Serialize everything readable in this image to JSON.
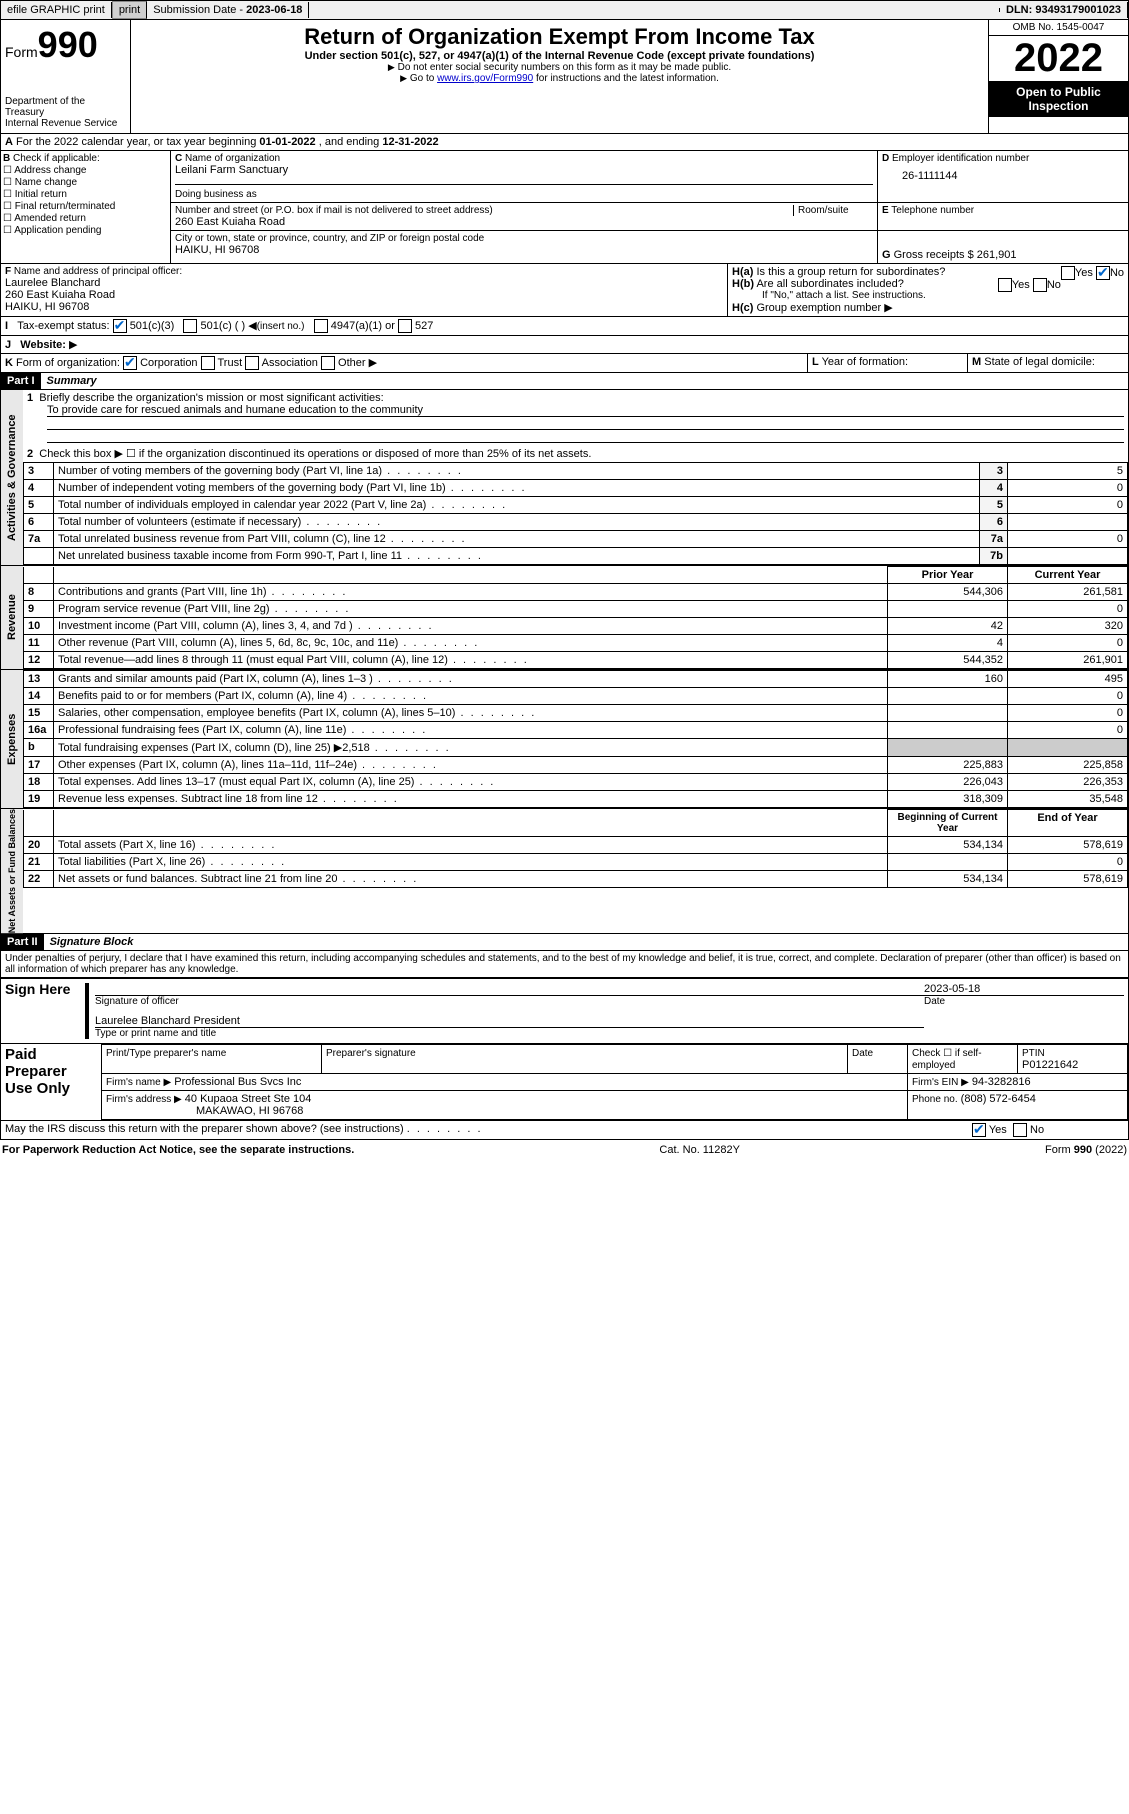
{
  "topbar": {
    "efile": "efile GRAPHIC print",
    "sub_label": "Submission Date - ",
    "sub_date": "2023-06-18",
    "dln_label": "DLN: ",
    "dln": "93493179001023"
  },
  "header": {
    "form_word": "Form",
    "form_num": "990",
    "dept": "Department of the Treasury",
    "irs": "Internal Revenue Service",
    "title": "Return of Organization Exempt From Income Tax",
    "subtitle": "Under section 501(c), 527, or 4947(a)(1) of the Internal Revenue Code (except private foundations)",
    "note1": "Do not enter social security numbers on this form as it may be made public.",
    "note2_pre": "Go to ",
    "note2_link": "www.irs.gov/Form990",
    "note2_post": " for instructions and the latest information.",
    "omb": "OMB No. 1545-0047",
    "year": "2022",
    "inspect1": "Open to Public",
    "inspect2": "Inspection"
  },
  "A": {
    "text": "For the 2022 calendar year, or tax year beginning ",
    "begin": "01-01-2022",
    "mid": " , and ending ",
    "end": "12-31-2022"
  },
  "B": {
    "label": "Check if applicable:",
    "opts": [
      "Address change",
      "Name change",
      "Initial return",
      "Final return/terminated",
      "Amended return",
      "Application pending"
    ]
  },
  "C": {
    "name_lbl": "Name of organization",
    "name": "Leilani Farm Sanctuary",
    "dba_lbl": "Doing business as",
    "street_lbl": "Number and street (or P.O. box if mail is not delivered to street address)",
    "room_lbl": "Room/suite",
    "street": "260 East Kuiaha Road",
    "city_lbl": "City or town, state or province, country, and ZIP or foreign postal code",
    "city": "HAIKU, HI  96708"
  },
  "D": {
    "lbl": "Employer identification number",
    "val": "26-1111144"
  },
  "E": {
    "lbl": "Telephone number"
  },
  "G": {
    "lbl": "Gross receipts $ ",
    "val": "261,901"
  },
  "F": {
    "lbl": "Name and address of principal officer:",
    "name": "Laurelee Blanchard",
    "addr1": "260 East Kuiaha Road",
    "addr2": "HAIKU, HI  96708"
  },
  "H": {
    "a": "Is this a group return for subordinates?",
    "b": "Are all subordinates included?",
    "note": "If \"No,\" attach a list. See instructions.",
    "c": "Group exemption number",
    "yes": "Yes",
    "no": "No"
  },
  "I": {
    "lbl": "Tax-exempt status:",
    "o1": "501(c)(3)",
    "o2": "501(c) (  )",
    "o2b": "(insert no.)",
    "o3": "4947(a)(1) or",
    "o4": "527"
  },
  "J": {
    "lbl": "Website:"
  },
  "K": {
    "lbl": "Form of organization:",
    "o1": "Corporation",
    "o2": "Trust",
    "o3": "Association",
    "o4": "Other"
  },
  "L": {
    "lbl": "Year of formation:"
  },
  "M": {
    "lbl": "State of legal domicile:"
  },
  "part1": {
    "hdr": "Part I",
    "title": "Summary"
  },
  "summary": {
    "l1": "Briefly describe the organization's mission or most significant activities:",
    "l1v": "To provide care for rescued animals and humane education to the community",
    "l2": "Check this box ▶ ☐  if the organization discontinued its operations or disposed of more than 25% of its net assets.",
    "rows_top": [
      {
        "n": "3",
        "t": "Number of voting members of the governing body (Part VI, line 1a)",
        "box": "3",
        "v": "5"
      },
      {
        "n": "4",
        "t": "Number of independent voting members of the governing body (Part VI, line 1b)",
        "box": "4",
        "v": "0"
      },
      {
        "n": "5",
        "t": "Total number of individuals employed in calendar year 2022 (Part V, line 2a)",
        "box": "5",
        "v": "0"
      },
      {
        "n": "6",
        "t": "Total number of volunteers (estimate if necessary)",
        "box": "6",
        "v": ""
      },
      {
        "n": "7a",
        "t": "Total unrelated business revenue from Part VIII, column (C), line 12",
        "box": "7a",
        "v": "0"
      },
      {
        "n": "",
        "t": "Net unrelated business taxable income from Form 990-T, Part I, line 11",
        "box": "7b",
        "v": ""
      }
    ],
    "prior": "Prior Year",
    "current": "Current Year",
    "rev_rows": [
      {
        "n": "8",
        "t": "Contributions and grants (Part VIII, line 1h)",
        "p": "544,306",
        "c": "261,581"
      },
      {
        "n": "9",
        "t": "Program service revenue (Part VIII, line 2g)",
        "p": "",
        "c": "0"
      },
      {
        "n": "10",
        "t": "Investment income (Part VIII, column (A), lines 3, 4, and 7d )",
        "p": "42",
        "c": "320"
      },
      {
        "n": "11",
        "t": "Other revenue (Part VIII, column (A), lines 5, 6d, 8c, 9c, 10c, and 11e)",
        "p": "4",
        "c": "0"
      },
      {
        "n": "12",
        "t": "Total revenue—add lines 8 through 11 (must equal Part VIII, column (A), line 12)",
        "p": "544,352",
        "c": "261,901"
      }
    ],
    "exp_rows": [
      {
        "n": "13",
        "t": "Grants and similar amounts paid (Part IX, column (A), lines 1–3 )",
        "p": "160",
        "c": "495"
      },
      {
        "n": "14",
        "t": "Benefits paid to or for members (Part IX, column (A), line 4)",
        "p": "",
        "c": "0"
      },
      {
        "n": "15",
        "t": "Salaries, other compensation, employee benefits (Part IX, column (A), lines 5–10)",
        "p": "",
        "c": "0"
      },
      {
        "n": "16a",
        "t": "Professional fundraising fees (Part IX, column (A), line 11e)",
        "p": "",
        "c": "0"
      },
      {
        "n": "b",
        "t": "Total fundraising expenses (Part IX, column (D), line 25) ▶2,518",
        "p": "shade",
        "c": "shade"
      },
      {
        "n": "17",
        "t": "Other expenses (Part IX, column (A), lines 11a–11d, 11f–24e)",
        "p": "225,883",
        "c": "225,858"
      },
      {
        "n": "18",
        "t": "Total expenses. Add lines 13–17 (must equal Part IX, column (A), line 25)",
        "p": "226,043",
        "c": "226,353"
      },
      {
        "n": "19",
        "t": "Revenue less expenses. Subtract line 18 from line 12",
        "p": "318,309",
        "c": "35,548"
      }
    ],
    "boy": "Beginning of Current Year",
    "eoy": "End of Year",
    "na_rows": [
      {
        "n": "20",
        "t": "Total assets (Part X, line 16)",
        "p": "534,134",
        "c": "578,619"
      },
      {
        "n": "21",
        "t": "Total liabilities (Part X, line 26)",
        "p": "",
        "c": "0"
      },
      {
        "n": "22",
        "t": "Net assets or fund balances. Subtract line 21 from line 20",
        "p": "534,134",
        "c": "578,619"
      }
    ]
  },
  "sections": {
    "act": "Activities & Governance",
    "rev": "Revenue",
    "exp": "Expenses",
    "na": "Net Assets or Fund Balances"
  },
  "part2": {
    "hdr": "Part II",
    "title": "Signature Block"
  },
  "sig": {
    "decl": "Under penalties of perjury, I declare that I have examined this return, including accompanying schedules and statements, and to the best of my knowledge and belief, it is true, correct, and complete. Declaration of preparer (other than officer) is based on all information of which preparer has any knowledge.",
    "sign_here": "Sign Here",
    "sig_officer": "Signature of officer",
    "date_lbl": "Date",
    "date": "2023-05-18",
    "name_title": "Laurelee Blanchard  President",
    "type_lbl": "Type or print name and title",
    "paid": "Paid Preparer Use Only",
    "prep_name_lbl": "Print/Type preparer's name",
    "prep_sig_lbl": "Preparer's signature",
    "check_lbl": "Check ☐ if self-employed",
    "ptin_lbl": "PTIN",
    "ptin": "P01221642",
    "firm_name_lbl": "Firm's name   ▶",
    "firm_name": "Professional Bus Svcs Inc",
    "firm_ein_lbl": "Firm's EIN ▶",
    "firm_ein": "94-3282816",
    "firm_addr_lbl": "Firm's address ▶",
    "firm_addr1": "40 Kupaoa Street Ste 104",
    "firm_addr2": "MAKAWAO, HI  96768",
    "phone_lbl": "Phone no.",
    "phone": "(808) 572-6454",
    "discuss": "May the IRS discuss this return with the preparer shown above? (see instructions)"
  },
  "footer": {
    "left": "For Paperwork Reduction Act Notice, see the separate instructions.",
    "mid": "Cat. No. 11282Y",
    "right": "Form 990 (2022)"
  },
  "colors": {
    "link": "#0000cc",
    "check": "#0066cc"
  }
}
